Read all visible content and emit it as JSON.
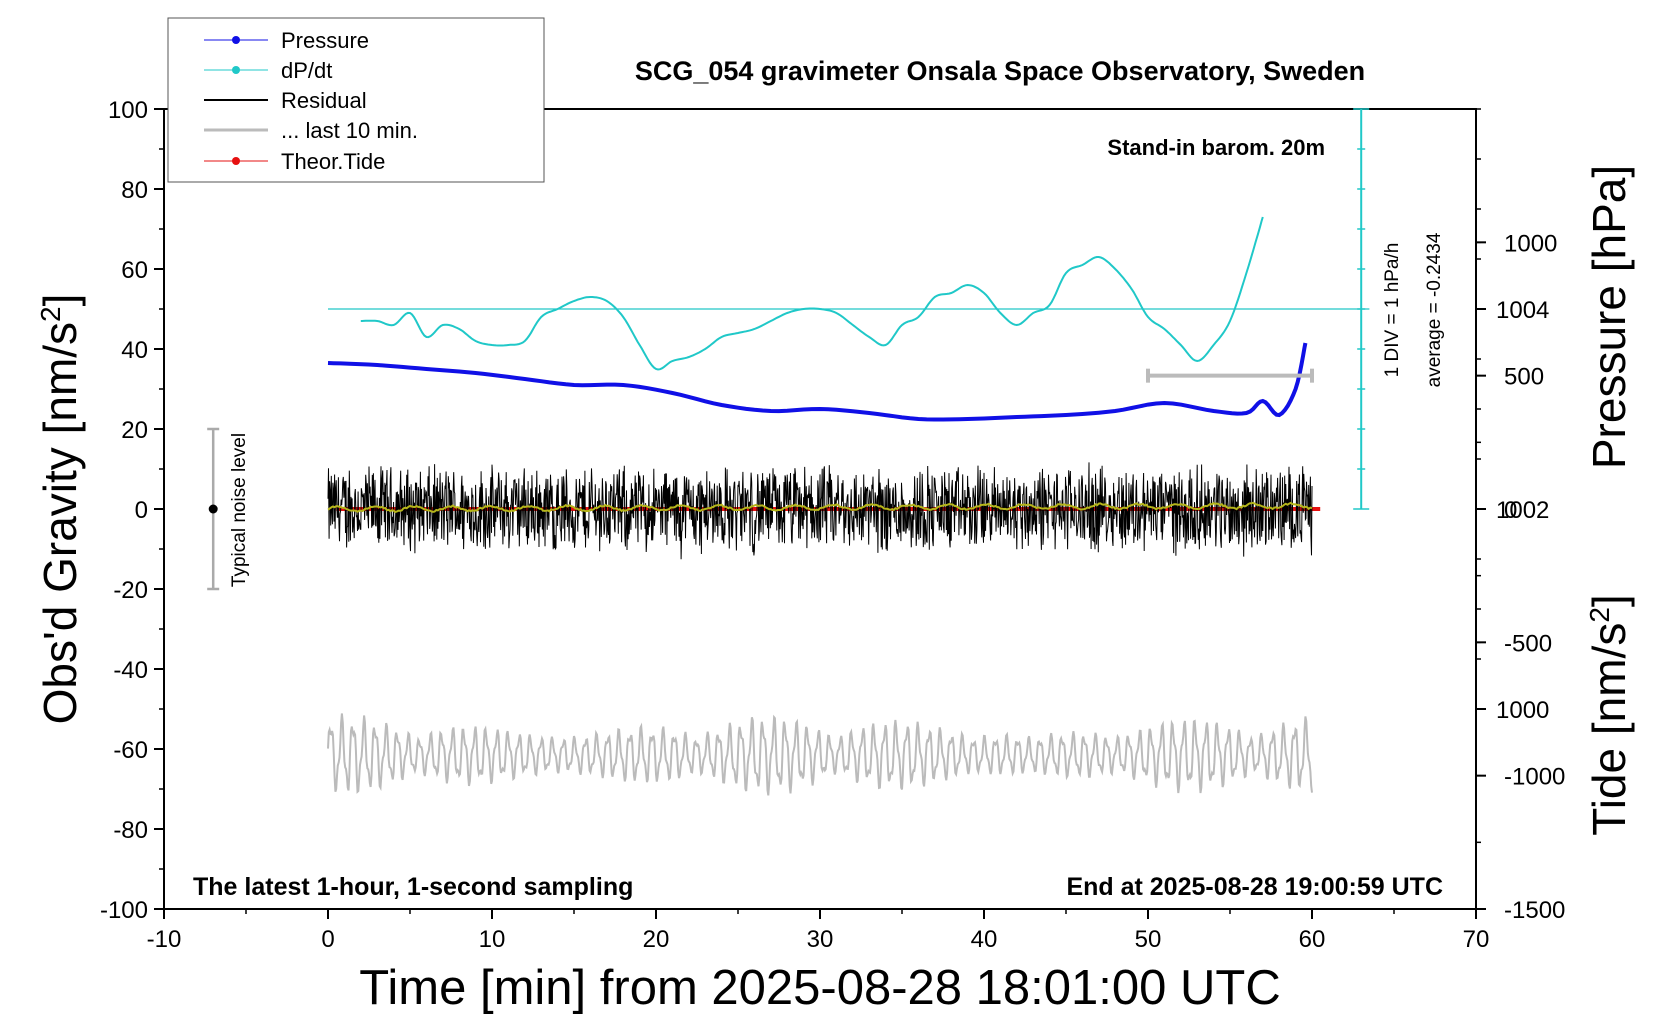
{
  "chart_data": {
    "type": "line",
    "title": "SCG_054 gravimeter Onsala Space Observatory, Sweden",
    "xlabel": "Time [min] from 2025-08-28 18:01:00 UTC",
    "ylabel_left_main": "Obs'd Gravity [nm/s",
    "ylabel_left_sup": "2",
    "ylabel_left_tail": "]",
    "ylabel_right_pressure": "Pressure [hPa]",
    "ylabel_right_tide_main": "Tide [nm/s",
    "ylabel_right_tide_sup": "2",
    "ylabel_right_tide_tail": "]",
    "xlim": [
      -10,
      70
    ],
    "ylim": [
      -100,
      100
    ],
    "pressure_ylim": [
      998,
      1006
    ],
    "tide_ylim": [
      -1500,
      1500
    ],
    "x_ticks": [
      "-10",
      "0",
      "10",
      "20",
      "30",
      "40",
      "50",
      "60",
      "70"
    ],
    "y_ticks": [
      "100",
      "80",
      "60",
      "40",
      "20",
      "0",
      "-20",
      "-40",
      "-60",
      "-80",
      "-100"
    ],
    "pressure_ticks": [
      "1004",
      "1002",
      "1000"
    ],
    "tide_ticks": [
      "1000",
      "500",
      "0",
      "-500",
      "-1000",
      "-1500"
    ],
    "annotations": {
      "stand_in": "Stand-in barom. 20m",
      "scale_div": "1 DIV = 1 hPa/h",
      "scale_avg": "average = -0.2434",
      "noise": "Typical noise level",
      "bottom_left": "The latest 1-hour, 1-second sampling",
      "bottom_right": "End at 2025-08-28 19:00:59 UTC"
    },
    "legend": {
      "placement": "top-left",
      "entries": [
        {
          "label": "Pressure",
          "color": "#1010e6"
        },
        {
          "label": "dP/dt",
          "color": "#20c8c8"
        },
        {
          "label": "Residual",
          "color": "#000000"
        },
        {
          "label": "... last 10 min.",
          "color": "#bbbbbb"
        },
        {
          "label": "Theor.Tide",
          "color": "#e61010"
        }
      ]
    },
    "series": [
      {
        "name": "Pressure",
        "axis": "pressure",
        "color": "#1010e6",
        "x": [
          0,
          3,
          6,
          9,
          12,
          15,
          18,
          21,
          24,
          27,
          30,
          33,
          36,
          39,
          42,
          45,
          48,
          51,
          54,
          56,
          57,
          58,
          59,
          59.6
        ],
        "values": [
          1003.46,
          1003.44,
          1003.4,
          1003.36,
          1003.3,
          1003.24,
          1003.24,
          1003.16,
          1003.04,
          1002.98,
          1003.0,
          1002.96,
          1002.9,
          1002.9,
          1002.92,
          1002.94,
          1002.98,
          1003.06,
          1002.98,
          1002.96,
          1003.08,
          1002.94,
          1003.2,
          1003.66
        ]
      },
      {
        "name": "dP/dt",
        "axis": "gravity",
        "color": "#20c8c8",
        "x": [
          2,
          3,
          4,
          5,
          6,
          7,
          8,
          9,
          10,
          11,
          12,
          13,
          14,
          15,
          16,
          17,
          18,
          19,
          20,
          21,
          22,
          23,
          24,
          25,
          26,
          27,
          28,
          29,
          30,
          31,
          32,
          33,
          34,
          35,
          36,
          37,
          38,
          39,
          40,
          41,
          42,
          43,
          44,
          45,
          46,
          47,
          48,
          49,
          50,
          51,
          52,
          53,
          54,
          55,
          56,
          57
        ],
        "values": [
          47,
          47,
          46,
          49,
          43,
          46,
          45,
          42,
          41,
          41,
          42,
          48,
          50,
          52,
          53,
          52,
          48,
          41,
          35,
          37,
          38,
          40,
          43,
          44,
          45,
          47,
          49,
          50,
          50,
          49,
          46,
          43,
          41,
          46,
          48,
          53,
          54,
          56,
          54,
          49,
          46,
          49,
          51,
          59,
          61,
          63,
          60,
          55,
          48,
          45,
          41,
          37,
          41,
          47,
          59,
          73
        ]
      },
      {
        "name": "Residual",
        "axis": "gravity",
        "color": "#000000",
        "x_range": [
          0,
          60
        ],
        "amplitude": 12,
        "values_range": [
          -16,
          17
        ]
      },
      {
        "name": "Residual smoothed",
        "axis": "gravity",
        "color": "#b5b51a",
        "x_range": [
          0,
          60
        ],
        "values_range": [
          -1,
          1
        ]
      },
      {
        "name": "... last 10 min.",
        "axis": "gravity",
        "color": "#bbbbbb",
        "x_range": [
          0,
          60
        ],
        "values_range": [
          -72,
          -51
        ]
      },
      {
        "name": "Theor.Tide",
        "axis": "tide",
        "color": "#e61010",
        "x": [
          0.5,
          60.5
        ],
        "values": [
          0,
          0
        ]
      }
    ],
    "reference_line": {
      "axis": "gravity",
      "value": 50,
      "color": "#20c8c8"
    },
    "dpdt_scale": {
      "x": 63,
      "from": 0,
      "to": 100,
      "color": "#20c8c8"
    },
    "noise_bar": {
      "x": -7,
      "from": -20,
      "to": 20,
      "center": 0
    },
    "last10_bar": {
      "x": [
        50,
        60
      ],
      "value": 500,
      "axis": "tide"
    },
    "grid": false
  }
}
